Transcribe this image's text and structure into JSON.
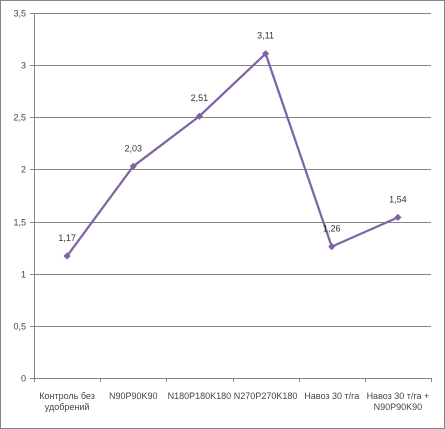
{
  "chart_data": {
    "type": "line",
    "title": "",
    "xlabel": "",
    "ylabel": "",
    "categories": [
      [
        "Контроль без",
        "удобрений"
      ],
      [
        "N90P90K90"
      ],
      [
        "N180P180K180"
      ],
      [
        "N270P270K180"
      ],
      [
        "Навоз 30 т/га"
      ],
      [
        "Навоз 30 т/га +",
        "N90P90K90"
      ]
    ],
    "y_ticks": [
      "0",
      "0,5",
      "1",
      "1,5",
      "2",
      "2,5",
      "3",
      "3,5"
    ],
    "ylim": [
      0,
      3.5
    ],
    "grid": true,
    "legend": "none",
    "series": [
      {
        "values": [
          1.17,
          2.03,
          2.51,
          3.11,
          1.26,
          1.54
        ],
        "labels": [
          "1,17",
          "2,03",
          "2,51",
          "3,11",
          "1,26",
          "1,54"
        ],
        "color": "#7f64a2"
      }
    ],
    "colors": {
      "grid": "#868686",
      "axis": "#868686"
    }
  }
}
